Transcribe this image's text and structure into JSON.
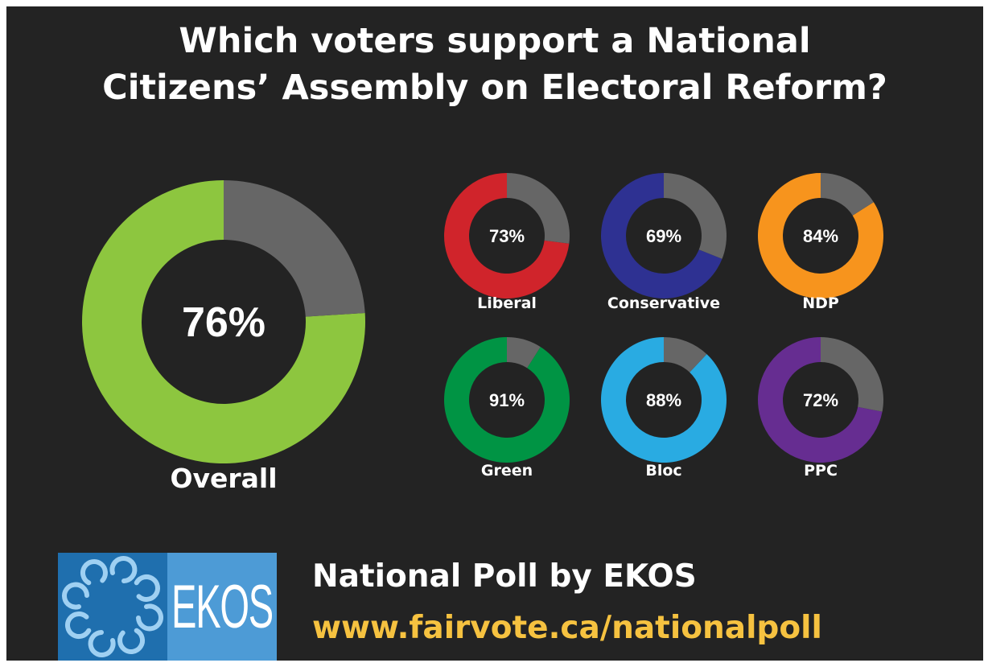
{
  "title_lines": [
    "Which voters support a National",
    "Citizens’ Assembly on Electoral Reform?"
  ],
  "chart_data": {
    "type": "pie",
    "title": "Which voters support a National Citizens’ Assembly on Electoral Reform?",
    "charts": [
      {
        "label": "Overall",
        "value": 76,
        "display": "76%",
        "color": "#8dc63f"
      },
      {
        "label": "Liberal",
        "value": 73,
        "display": "73%",
        "color": "#d0242b"
      },
      {
        "label": "Conservative",
        "value": 69,
        "display": "69%",
        "color": "#2e3192"
      },
      {
        "label": "NDP",
        "value": 84,
        "display": "84%",
        "color": "#f7941d"
      },
      {
        "label": "Green",
        "value": 91,
        "display": "91%",
        "color": "#009444"
      },
      {
        "label": "Bloc",
        "value": 88,
        "display": "88%",
        "color": "#29abe2"
      },
      {
        "label": "PPC",
        "value": 72,
        "display": "72%",
        "color": "#662d91"
      }
    ],
    "remainder_color": "#666666"
  },
  "footer": {
    "line1": "National Poll by EKOS",
    "line2": "www.fairvote.ca/nationalpoll"
  },
  "logo": {
    "text": "EKOS",
    "icon": "ekos-ring-logo-icon"
  }
}
